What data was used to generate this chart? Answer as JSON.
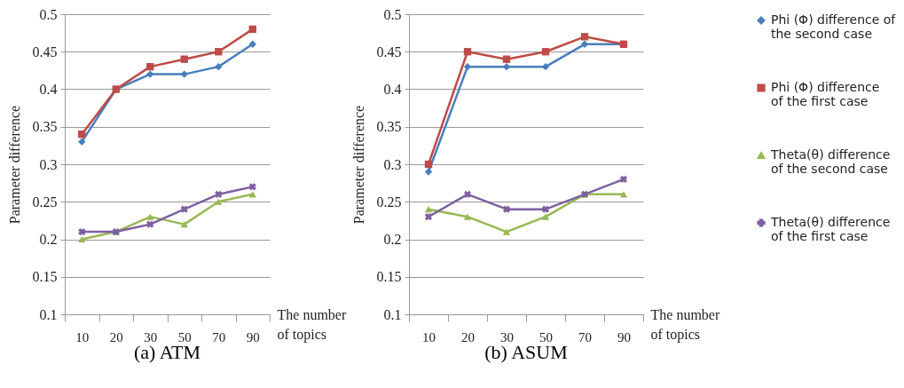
{
  "chart_data": [
    {
      "type": "line",
      "title": "(a) ATM",
      "xlabel": "The number of topics",
      "ylabel": "Parameter difference",
      "categories": [
        "10",
        "20",
        "30",
        "50",
        "70",
        "90"
      ],
      "ylim": [
        0.1,
        0.5
      ],
      "yticks": [
        0.1,
        0.15,
        0.2,
        0.25,
        0.3,
        0.35,
        0.4,
        0.45,
        0.5
      ],
      "grid": "y",
      "legend": "right",
      "series": [
        {
          "name": "Phi (Φ) difference of the second case",
          "color": "#4a7ebb",
          "marker": "diamond",
          "values": [
            0.33,
            0.4,
            0.42,
            0.42,
            0.43,
            0.46
          ]
        },
        {
          "name": "Phi (Φ) difference of the first case",
          "color": "#be4b48",
          "marker": "square",
          "values": [
            0.34,
            0.4,
            0.43,
            0.44,
            0.45,
            0.48
          ]
        },
        {
          "name": "Theta(θ) difference of the second case",
          "color": "#98b954",
          "marker": "triangle",
          "values": [
            0.2,
            0.21,
            0.23,
            0.22,
            0.25,
            0.26
          ]
        },
        {
          "name": "Theta(θ) difference of the first case",
          "color": "#7d60a0",
          "marker": "cross",
          "values": [
            0.21,
            0.21,
            0.22,
            0.24,
            0.26,
            0.27
          ]
        }
      ]
    },
    {
      "type": "line",
      "title": "(b) ASUM",
      "xlabel": "The number of topics",
      "ylabel": "Parameter difference",
      "categories": [
        "10",
        "20",
        "30",
        "50",
        "70",
        "90"
      ],
      "ylim": [
        0.1,
        0.5
      ],
      "yticks": [
        0.1,
        0.15,
        0.2,
        0.25,
        0.3,
        0.35,
        0.4,
        0.45,
        0.5
      ],
      "grid": "y",
      "legend": "right",
      "series": [
        {
          "name": "Phi (Φ) difference of the second case",
          "color": "#4a7ebb",
          "marker": "diamond",
          "values": [
            0.29,
            0.43,
            0.43,
            0.43,
            0.46,
            0.46
          ]
        },
        {
          "name": "Phi (Φ) difference of the first case",
          "color": "#be4b48",
          "marker": "square",
          "values": [
            0.3,
            0.45,
            0.44,
            0.45,
            0.47,
            0.46
          ]
        },
        {
          "name": "Theta(θ) difference of the second case",
          "color": "#98b954",
          "marker": "triangle",
          "values": [
            0.24,
            0.23,
            0.21,
            0.23,
            0.26,
            0.26
          ]
        },
        {
          "name": "Theta(θ) difference of the first case",
          "color": "#7d60a0",
          "marker": "cross",
          "values": [
            0.23,
            0.26,
            0.24,
            0.24,
            0.26,
            0.28
          ]
        }
      ]
    }
  ]
}
